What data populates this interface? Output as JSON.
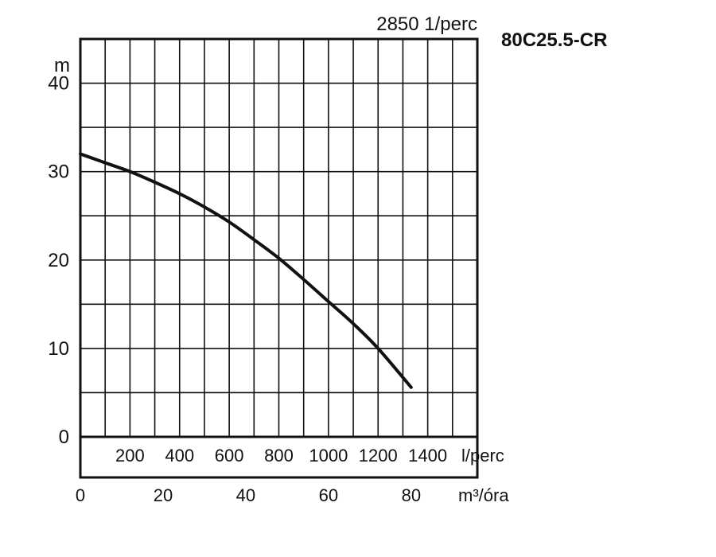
{
  "chart_data": {
    "type": "line",
    "title": "80C25.5-CR",
    "subtitle": "2850 1/perc",
    "ylabel": "m",
    "xlabel_primary": "l/perc",
    "xlabel_secondary": "m³/óra",
    "ylim": [
      0,
      45
    ],
    "xlim_m3h": [
      0,
      96
    ],
    "yticks": [
      "0",
      "10",
      "20",
      "30",
      "40"
    ],
    "xticks_lperc": [
      "200",
      "400",
      "600",
      "800",
      "1000",
      "1200",
      "1400"
    ],
    "xticks_m3h": [
      "0",
      "20",
      "40",
      "60",
      "80"
    ],
    "grid": true,
    "series": [
      {
        "x": [
          0,
          6,
          12,
          18,
          24,
          30,
          36,
          42,
          48,
          54,
          60,
          66,
          72,
          80
        ],
        "y": [
          32,
          31,
          30,
          28.8,
          27.5,
          26,
          24.3,
          22.3,
          20.2,
          17.8,
          15.3,
          12.8,
          10,
          5.6
        ]
      }
    ]
  }
}
